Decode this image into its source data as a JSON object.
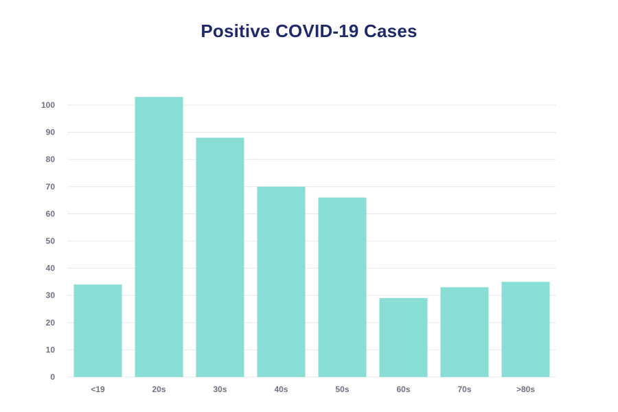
{
  "chart_data": {
    "type": "bar",
    "title": "Positive COVID-19 Cases",
    "categories": [
      "<19",
      "20s",
      "30s",
      "40s",
      "50s",
      "60s",
      "70s",
      ">80s"
    ],
    "values": [
      34,
      103,
      88,
      70,
      66,
      29,
      33,
      35
    ],
    "xlabel": "",
    "ylabel": "",
    "ylim": [
      0,
      100
    ],
    "yticks": [
      0,
      10,
      20,
      30,
      40,
      50,
      60,
      70,
      80,
      90,
      100
    ],
    "grid": true,
    "legend": "none",
    "colors": {
      "bar": "#88ddd5",
      "title": "#1f2a6b",
      "grid": "#e6e8ec",
      "tick_text": "#6e7281"
    }
  }
}
